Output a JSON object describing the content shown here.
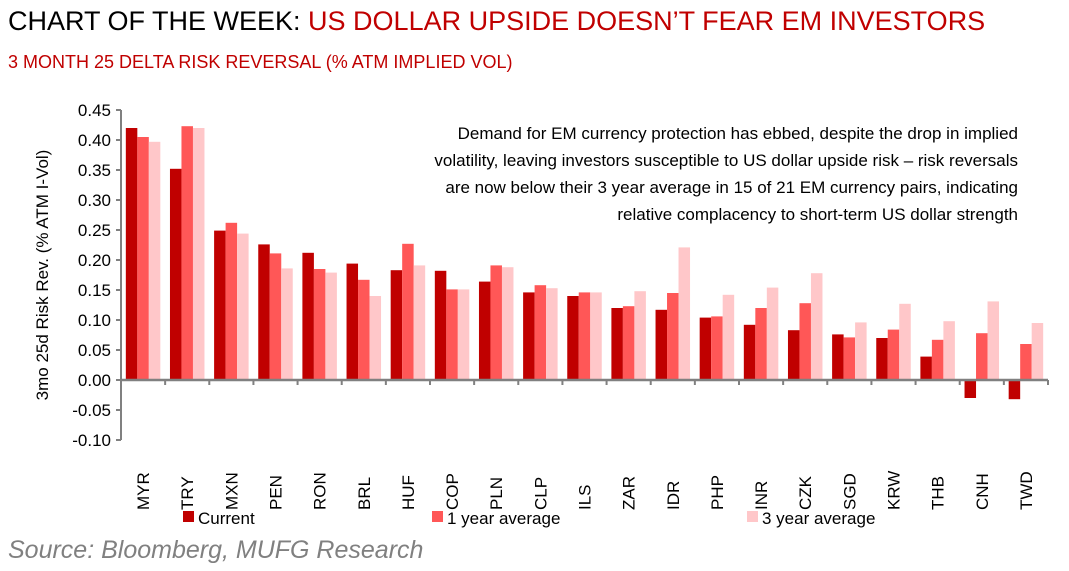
{
  "header": {
    "title_prefix": "CHART OF THE WEEK: ",
    "title_highlight": "US DOLLAR UPSIDE DOESN’T FEAR EM INVESTORS",
    "subtitle": "3 MONTH 25 DELTA RISK REVERSAL (% ATM IMPLIED VOL)"
  },
  "source": "Source: Bloomberg, MUFG Research",
  "chart_data": {
    "type": "bar",
    "ylabel": "3mo 25d Risk Rev. (% ATM I-Vol)",
    "ylim": [
      -0.1,
      0.45
    ],
    "yticks": [
      "-0.10",
      "-0.05",
      "0.00",
      "0.05",
      "0.10",
      "0.15",
      "0.20",
      "0.25",
      "0.30",
      "0.35",
      "0.40",
      "0.45"
    ],
    "grid": false,
    "legend": "bottom",
    "annotation": [
      "Demand for EM currency protection has ebbed, despite the drop in implied",
      "volatility, leaving investors susceptible to US dollar upside risk – risk reversals",
      "are now below their 3 year average in 15 of 21 EM currency pairs, indicating",
      "relative complacency to short-term US dollar strength"
    ],
    "categories": [
      "MYR",
      "TRY",
      "MXN",
      "PEN",
      "RON",
      "BRL",
      "HUF",
      "COP",
      "PLN",
      "CLP",
      "ILS",
      "ZAR",
      "IDR",
      "PHP",
      "INR",
      "CZK",
      "SGD",
      "KRW",
      "THB",
      "CNH",
      "TWD"
    ],
    "series": [
      {
        "name": "Current",
        "color": "#c00000",
        "values": [
          0.42,
          0.352,
          0.249,
          0.226,
          0.212,
          0.194,
          0.183,
          0.182,
          0.164,
          0.146,
          0.14,
          0.12,
          0.117,
          0.104,
          0.092,
          0.083,
          0.076,
          0.07,
          0.039,
          -0.03,
          -0.032
        ]
      },
      {
        "name": "1 year average",
        "color": "#ff5757",
        "values": [
          0.405,
          0.423,
          0.262,
          0.211,
          0.185,
          0.167,
          0.227,
          0.151,
          0.191,
          0.158,
          0.146,
          0.123,
          0.145,
          0.106,
          0.12,
          0.128,
          0.071,
          0.084,
          0.067,
          0.078,
          0.06
        ]
      },
      {
        "name": "3 year average",
        "color": "#ffc7c9",
        "values": [
          0.397,
          0.42,
          0.244,
          0.186,
          0.179,
          0.14,
          0.191,
          0.151,
          0.188,
          0.153,
          0.146,
          0.148,
          0.221,
          0.142,
          0.154,
          0.178,
          0.096,
          0.127,
          0.098,
          0.131,
          0.095
        ]
      }
    ]
  }
}
